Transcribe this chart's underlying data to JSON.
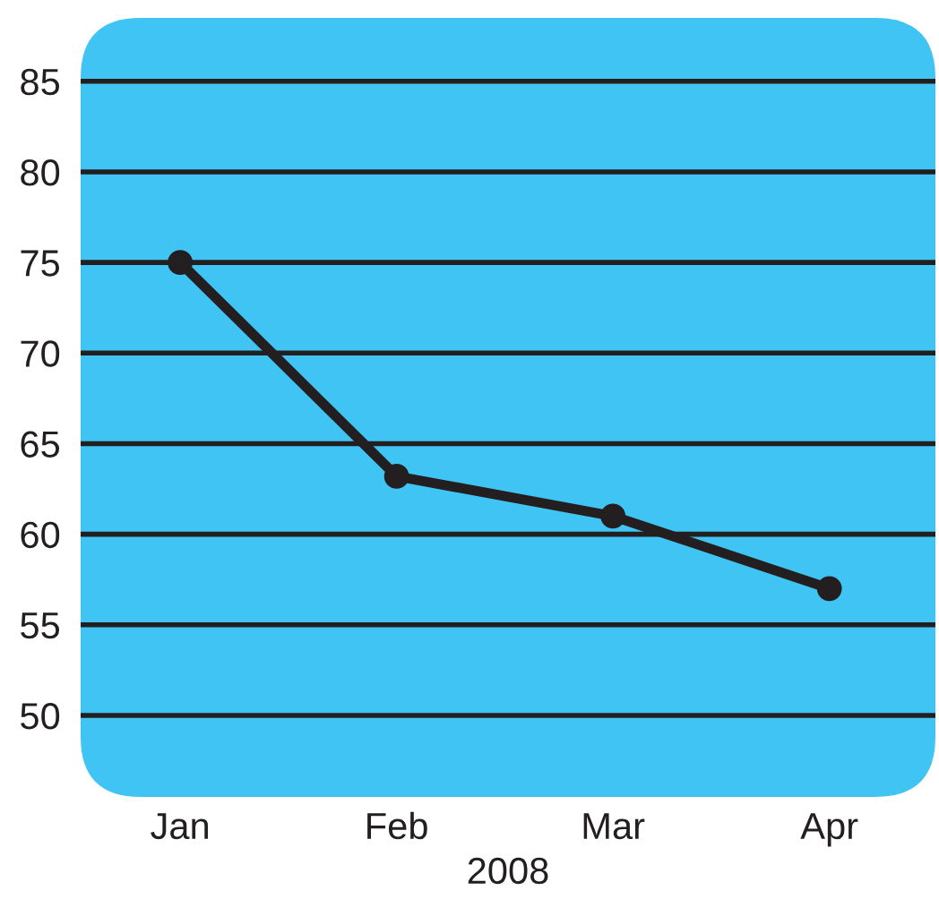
{
  "chart_data": {
    "type": "line",
    "xlabel": "2008",
    "categories": [
      "Jan",
      "Feb",
      "Mar",
      "Apr"
    ],
    "series": [
      {
        "color": "#231f20",
        "values": [
          75,
          63.2,
          61,
          57
        ]
      }
    ],
    "ylim": [
      45.5,
      88.5
    ],
    "yticks": [
      50,
      55,
      60,
      65,
      70,
      75,
      80,
      85
    ],
    "grid": "y",
    "marker": "circle",
    "line_style": "solid",
    "legend": false
  }
}
